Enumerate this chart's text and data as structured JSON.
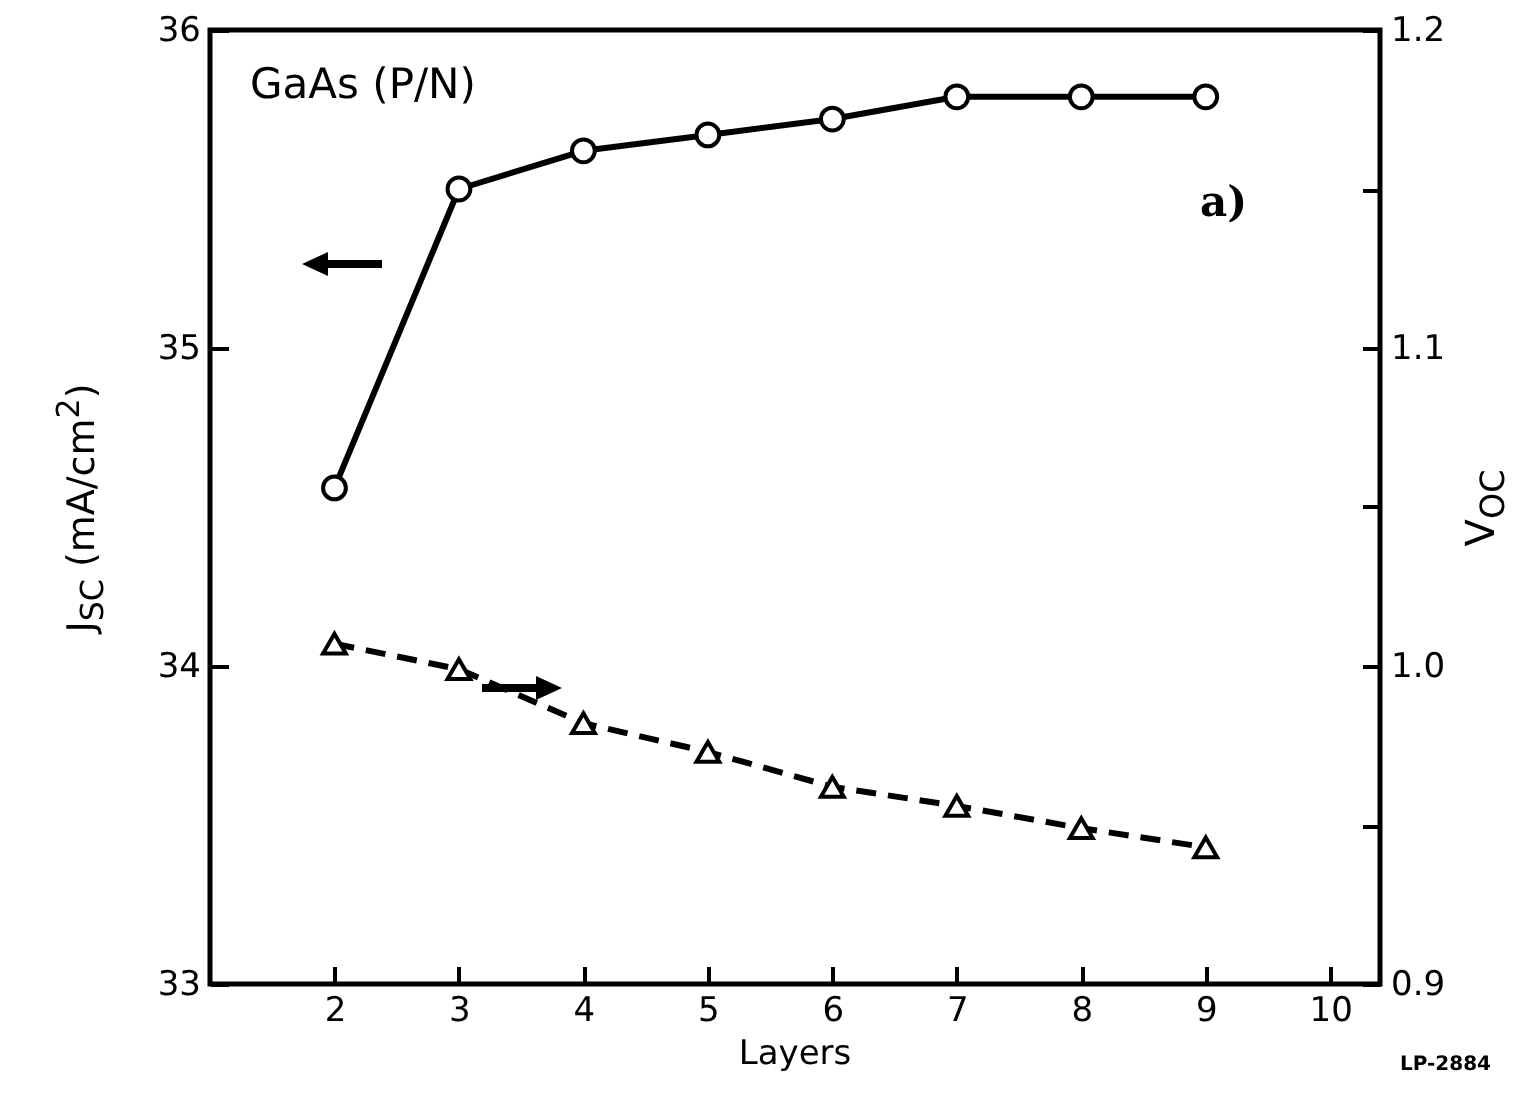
{
  "chart_data": {
    "type": "line",
    "xlabel": "Layers",
    "ylabel": "J$_{SC}$ (mA/cm$^{2}$)",
    "y2label": "V$_{OC}$",
    "x": [
      2,
      3,
      4,
      5,
      6,
      7,
      8,
      9
    ],
    "series": [
      {
        "color": "#000000",
        "marker": "circle",
        "line_style": "solid",
        "values": [
          34.56,
          35.5,
          35.62,
          35.67,
          35.72,
          35.79,
          35.79,
          35.79
        ]
      },
      {
        "color": "#000000",
        "marker": "triangle",
        "line_style": "dashed",
        "axis": "y2",
        "values": [
          1.007,
          0.999,
          0.982,
          0.973,
          0.962,
          0.956,
          0.949,
          0.943
        ]
      }
    ],
    "xlim": [
      1,
      10.4
    ],
    "xticks": [
      2,
      3,
      4,
      5,
      6,
      7,
      8,
      9,
      10
    ],
    "ylim": [
      33,
      36
    ],
    "yticks": [
      33,
      34,
      35,
      36
    ],
    "y2lim": [
      0.9,
      1.2
    ],
    "y2ticks": [
      0.9,
      {
        "value": 0.95,
        "label": null
      },
      {
        "value": 1,
        "label": "1.0"
      },
      {
        "value": 1.05,
        "label": null
      },
      1.1,
      {
        "value": 1.15,
        "label": null
      },
      1.2
    ],
    "grid": false,
    "annotations": [
      "GaAs (P/N)",
      "a)",
      "LP-2884"
    ]
  }
}
